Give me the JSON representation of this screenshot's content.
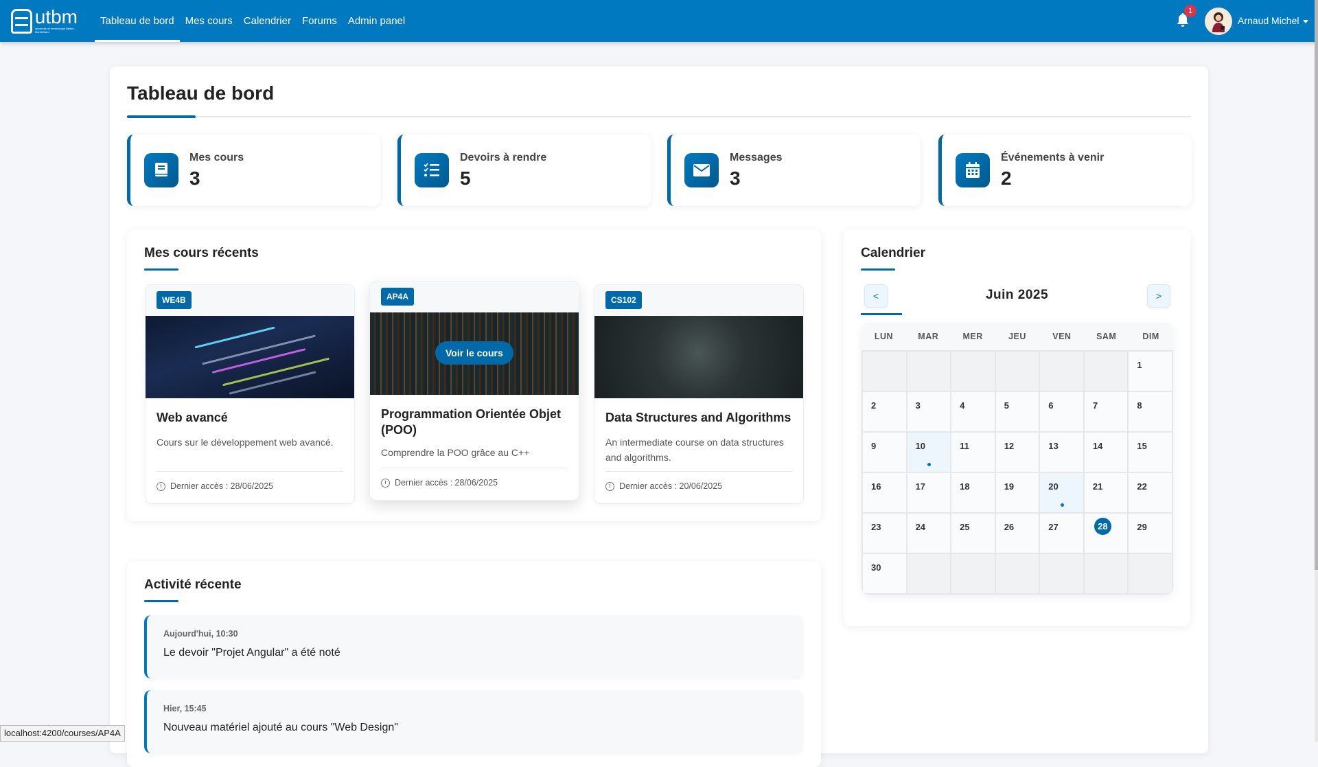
{
  "colors": {
    "primary": "#0079c1",
    "accent": "#0069a8",
    "badge": "#dc3545"
  },
  "navbar": {
    "logo_text": "utbm",
    "logo_sub": "université de technologie Belfort-Montbéliard",
    "links": [
      {
        "label": "Tableau de bord",
        "active": true
      },
      {
        "label": "Mes cours"
      },
      {
        "label": "Calendrier"
      },
      {
        "label": "Forums"
      },
      {
        "label": "Admin panel"
      }
    ],
    "notification_count": "1",
    "user_name": "Arnaud Michel"
  },
  "page": {
    "title": "Tableau de bord"
  },
  "stats": [
    {
      "label": "Mes cours",
      "value": "3",
      "icon": "book-icon"
    },
    {
      "label": "Devoirs à rendre",
      "value": "5",
      "icon": "task-list-icon"
    },
    {
      "label": "Messages",
      "value": "3",
      "icon": "envelope-icon"
    },
    {
      "label": "Événements à venir",
      "value": "2",
      "icon": "calendar-icon"
    }
  ],
  "courses": {
    "title": "Mes cours récents",
    "hover_button": "Voir le cours",
    "items": [
      {
        "code": "WE4B",
        "title": "Web avancé",
        "description": "Cours sur le développement web avancé.",
        "last_access": "Dernier accès : 28/06/2025"
      },
      {
        "code": "AP4A",
        "title": "Programmation Orientée Objet (POO)",
        "description": "Comprendre la POO grâce au C++",
        "last_access": "Dernier accès : 28/06/2025"
      },
      {
        "code": "CS102",
        "title": "Data Structures and Algorithms",
        "description": "An intermediate course on data structures and algorithms.",
        "last_access": "Dernier accès : 20/06/2025"
      }
    ]
  },
  "calendar": {
    "title": "Calendrier",
    "month": "Juin 2025",
    "prev": "<",
    "next": ">",
    "weekdays": [
      "LUN",
      "MAR",
      "MER",
      "JEU",
      "VEN",
      "SAM",
      "DIM"
    ],
    "leading_empty": 6,
    "days": 30,
    "event_days": [
      10,
      20
    ],
    "today": 28
  },
  "activity": {
    "title": "Activité récente",
    "items": [
      {
        "time": "Aujourd'hui, 10:30",
        "text": "Le devoir \"Projet Angular\" a été noté"
      },
      {
        "time": "Hier, 15:45",
        "text": "Nouveau matériel ajouté au cours \"Web Design\""
      }
    ]
  },
  "status_bar": {
    "url": "localhost:4200/courses/AP4A"
  }
}
